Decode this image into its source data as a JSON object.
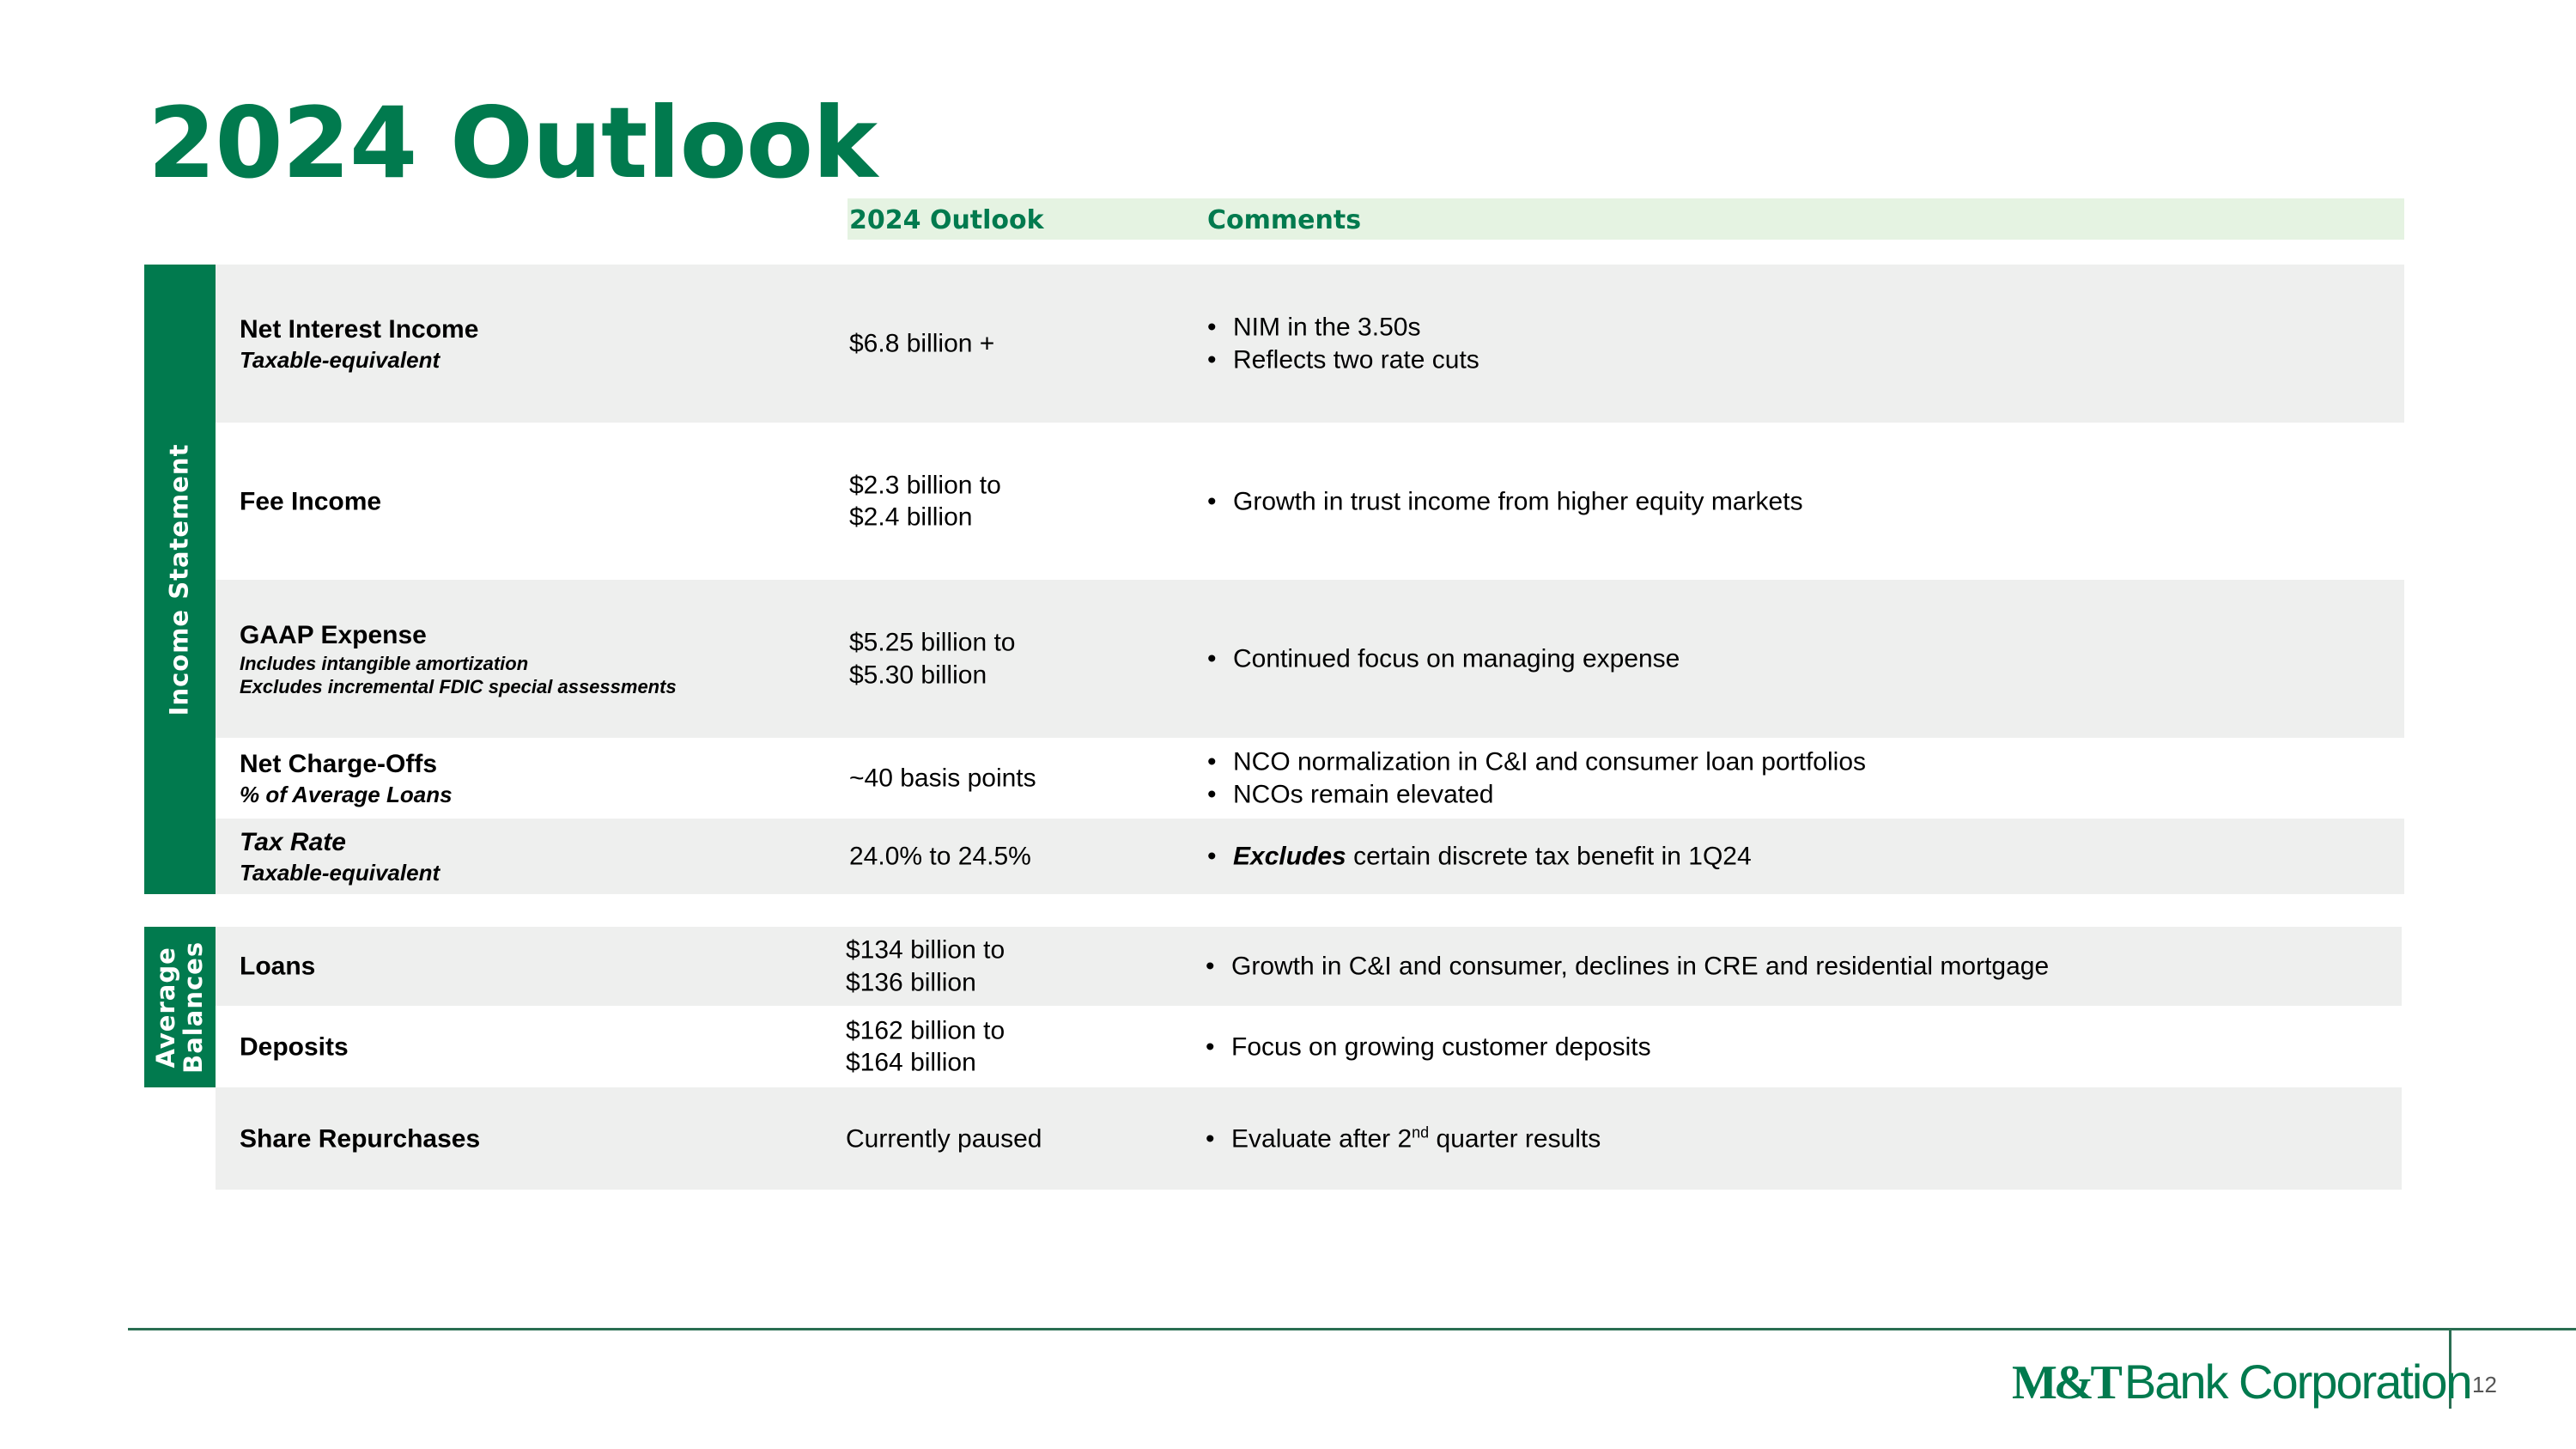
{
  "title": "2024 Outlook",
  "header": {
    "col_outlook": "2024 Outlook",
    "col_comments": "Comments"
  },
  "sections": {
    "income_statement": "Income Statement",
    "average_balances_1": "Average",
    "average_balances_2": "Balances"
  },
  "rows": [
    {
      "label": "Net Interest Income",
      "sub": [
        "Taxable-equivalent"
      ],
      "outlook": [
        "$6.8 billion +"
      ],
      "comments": [
        "NIM in the 3.50s",
        "Reflects two rate cuts"
      ]
    },
    {
      "label": "Fee Income",
      "sub": [],
      "outlook": [
        "$2.3 billion to",
        "$2.4 billion"
      ],
      "comments": [
        "Growth in trust income from higher equity markets"
      ]
    },
    {
      "label": "GAAP Expense",
      "sub": [
        "Includes intangible amortization",
        "Excludes incremental FDIC special assessments"
      ],
      "outlook": [
        "$5.25 billion to",
        "$5.30 billion"
      ],
      "comments": [
        "Continued focus on managing expense"
      ]
    },
    {
      "label": "Net Charge-Offs",
      "sub": [
        "% of Average Loans"
      ],
      "outlook": [
        "~40 basis points"
      ],
      "comments": [
        "NCO normalization in C&I and consumer loan portfolios",
        "NCOs remain elevated"
      ]
    },
    {
      "label": "Tax Rate",
      "sub": [
        "Taxable-equivalent"
      ],
      "outlook": [
        "24.0% to 24.5%"
      ],
      "comments_emph": "Excludes",
      "comments_rest": " certain discrete tax benefit in 1Q24"
    },
    {
      "label": "Loans",
      "outlook": [
        "$134 billion to",
        "$136 billion"
      ],
      "comments": [
        "Growth in C&I and consumer, declines in CRE and residential mortgage"
      ]
    },
    {
      "label": "Deposits",
      "outlook": [
        "$162 billion to",
        "$164 billion"
      ],
      "comments": [
        "Focus on growing customer deposits"
      ]
    },
    {
      "label": "Share Repurchases",
      "outlook": [
        "Currently paused"
      ],
      "comments_pre": "Evaluate after 2",
      "comments_sup": "nd",
      "comments_post": " quarter results"
    }
  ],
  "footer": {
    "logo_mark": "M&T",
    "logo_text": "Bank Corporation",
    "page": "12"
  },
  "colors": {
    "brand_green": "#017a4e",
    "header_band": "#e5f3e2",
    "row_grey": "#eeefee"
  }
}
